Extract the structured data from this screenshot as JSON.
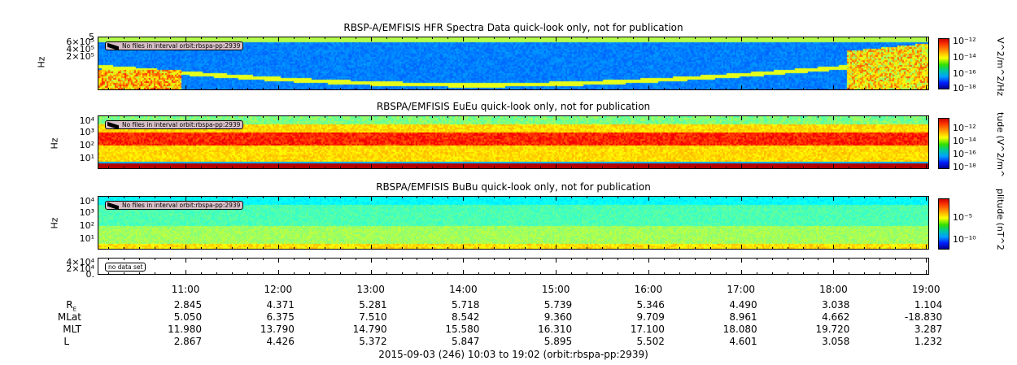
{
  "chart_data": [
    {
      "type": "heatmap",
      "title": "RBSP-A/EMFISIS  HFR Spectra Data quick-look only, not for publication",
      "ylabel": "Hz",
      "yticks": [
        "6×10⁵",
        "4×10⁵",
        "2×10⁵"
      ],
      "yticks_top": "5",
      "note": "No files in interval orbit:rbspa-pp:2939",
      "colorbar": {
        "ticks": [
          "10⁻¹²",
          "10⁻¹⁴",
          "10⁻¹⁶",
          "10⁻¹⁸"
        ],
        "label": "V^2/m^2/Hz"
      }
    },
    {
      "type": "heatmap",
      "title": "RBSPA/EMFISIS  EuEu quick-look only, not for publication",
      "ylabel": "Hz",
      "yticks": [
        "10⁴",
        "10³",
        "10²",
        "10¹"
      ],
      "note": "No files in interval orbit:rbspa-pp:2939",
      "colorbar": {
        "ticks": [
          "10⁻¹²",
          "10⁻¹⁴",
          "10⁻¹⁶",
          "10⁻¹⁸"
        ],
        "label": "tude (V^2/m^"
      }
    },
    {
      "type": "heatmap",
      "title": "RBSPA/EMFISIS  BuBu quick-look only, not for publication",
      "ylabel": "Hz",
      "yticks": [
        "10⁴",
        "10³",
        "10²",
        "10¹"
      ],
      "note": "No files in interval orbit:rbspa-pp:2939",
      "colorbar": {
        "ticks": [
          "10⁻⁵",
          "10⁻¹⁰"
        ],
        "label": "plitude (nT^2"
      }
    },
    {
      "type": "line",
      "yticks": [
        "4×10⁴",
        "2×10⁴",
        "0."
      ],
      "note": "no data set"
    }
  ],
  "xaxis": {
    "ticks": [
      "11:00",
      "12:00",
      "13:00",
      "14:00",
      "15:00",
      "16:00",
      "17:00",
      "18:00",
      "19:00"
    ],
    "start_hours": 10.05,
    "end_hours": 19.0333
  },
  "ephemeris": [
    {
      "label": "R",
      "sub": "E",
      "values": [
        "2.845",
        "4.371",
        "5.281",
        "5.718",
        "5.739",
        "5.346",
        "4.490",
        "3.038",
        "1.104"
      ]
    },
    {
      "label": "MLat",
      "sub": "",
      "values": [
        "5.050",
        "6.375",
        "7.510",
        "8.542",
        "9.360",
        "9.709",
        "8.961",
        "4.662",
        "-18.830"
      ]
    },
    {
      "label": "MLT",
      "sub": "",
      "values": [
        "11.980",
        "13.790",
        "14.790",
        "15.580",
        "16.310",
        "17.100",
        "18.080",
        "19.720",
        "3.287"
      ]
    },
    {
      "label": "L",
      "sub": "",
      "values": [
        "2.867",
        "4.426",
        "5.372",
        "5.847",
        "5.895",
        "5.502",
        "4.601",
        "3.058",
        "1.232"
      ]
    }
  ],
  "footer": "2015-09-03 (246) 10:03 to 19:02 (orbit:rbspa-pp:2939)"
}
